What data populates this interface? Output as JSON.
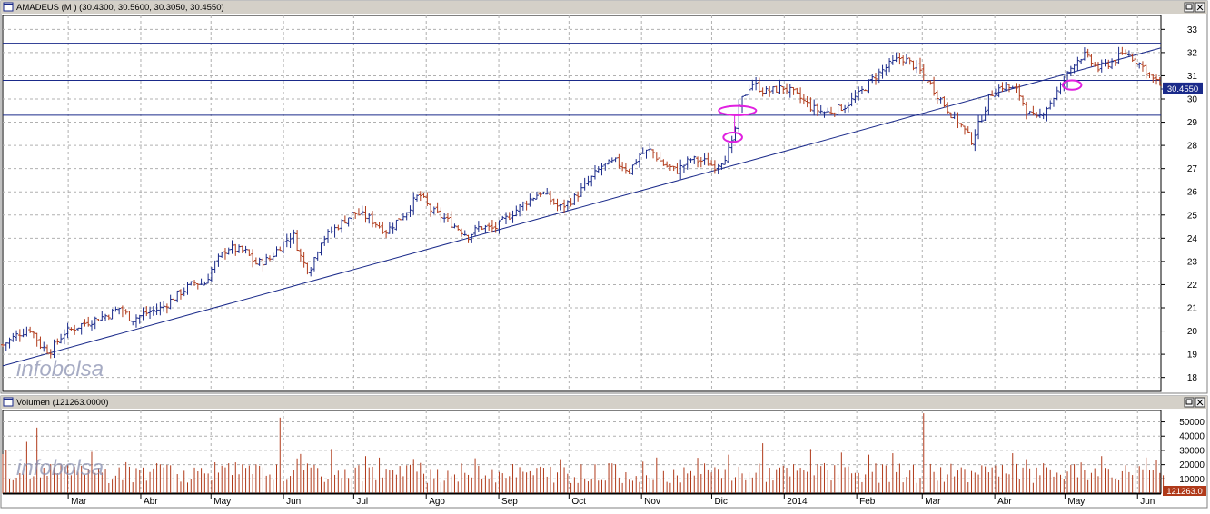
{
  "price_panel": {
    "title": "AMADEUS (M ) (30.4300, 30.5600, 30.3050, 30.4550)",
    "last_value_label": "30.4550",
    "watermark": "infobolsa"
  },
  "volume_panel": {
    "title": "Volumen (121263.0000)",
    "last_value_label": "121263.0",
    "watermark": "infobolsa"
  },
  "colors": {
    "up": "#1a2a8a",
    "down": "#b03a1a",
    "trendline": "#1a2a8a",
    "highlight": "#e020e0",
    "volume": "#b03a1a",
    "grid": "#b0b0b0",
    "frame": "#000000",
    "titlebar": "#d4d0c8",
    "last_value_bg": "#1a2a8a",
    "volume_last_bg": "#b03a1a"
  },
  "chart_data": [
    {
      "type": "ohlc",
      "title": "AMADEUS (M ) (30.4300, 30.5600, 30.3050, 30.4550)",
      "xlabel": "",
      "ylabel": "",
      "ylim": [
        17.4,
        33.6
      ],
      "y_ticks": [
        18,
        19,
        20,
        21,
        22,
        23,
        24,
        25,
        26,
        27,
        28,
        29,
        30,
        31,
        32,
        33
      ],
      "x_range_days": [
        0,
        495
      ],
      "months": [
        {
          "label": "Mar",
          "day": 28
        },
        {
          "label": "Abr",
          "day": 59
        },
        {
          "label": "May",
          "day": 89
        },
        {
          "label": "Jun",
          "day": 120
        },
        {
          "label": "Jul",
          "day": 150
        },
        {
          "label": "Ago",
          "day": 181
        },
        {
          "label": "Sep",
          "day": 212
        },
        {
          "label": "Oct",
          "day": 242
        },
        {
          "label": "Nov",
          "day": 273
        },
        {
          "label": "Dic",
          "day": 303
        },
        {
          "label": "2014",
          "day": 334
        },
        {
          "label": "Feb",
          "day": 365
        },
        {
          "label": "Mar",
          "day": 393
        },
        {
          "label": "Abr",
          "day": 424
        },
        {
          "label": "May",
          "day": 454
        },
        {
          "label": "Jun",
          "day": 485
        }
      ],
      "price_path": [
        [
          0,
          19.4
        ],
        [
          7,
          19.9
        ],
        [
          12,
          20.1
        ],
        [
          16,
          19.4
        ],
        [
          20,
          19.1
        ],
        [
          26,
          19.9
        ],
        [
          34,
          20.3
        ],
        [
          45,
          20.7
        ],
        [
          50,
          21.0
        ],
        [
          55,
          20.5
        ],
        [
          62,
          20.8
        ],
        [
          68,
          21.0
        ],
        [
          75,
          21.6
        ],
        [
          82,
          22.1
        ],
        [
          86,
          22.0
        ],
        [
          90,
          22.8
        ],
        [
          96,
          23.6
        ],
        [
          104,
          23.4
        ],
        [
          108,
          22.9
        ],
        [
          114,
          23.1
        ],
        [
          118,
          23.6
        ],
        [
          124,
          24.2
        ],
        [
          128,
          23.0
        ],
        [
          131,
          22.6
        ],
        [
          136,
          23.9
        ],
        [
          144,
          24.6
        ],
        [
          150,
          25.1
        ],
        [
          156,
          24.9
        ],
        [
          164,
          24.3
        ],
        [
          172,
          25.1
        ],
        [
          178,
          25.9
        ],
        [
          183,
          25.2
        ],
        [
          188,
          24.9
        ],
        [
          195,
          24.4
        ],
        [
          199,
          24.1
        ],
        [
          204,
          24.5
        ],
        [
          210,
          24.4
        ],
        [
          218,
          25.1
        ],
        [
          224,
          25.6
        ],
        [
          230,
          26.0
        ],
        [
          238,
          25.3
        ],
        [
          244,
          25.7
        ],
        [
          250,
          26.4
        ],
        [
          256,
          27.1
        ],
        [
          262,
          27.3
        ],
        [
          268,
          26.9
        ],
        [
          272,
          27.6
        ],
        [
          277,
          27.8
        ],
        [
          282,
          27.2
        ],
        [
          288,
          26.9
        ],
        [
          294,
          27.4
        ],
        [
          300,
          27.3
        ],
        [
          304,
          27.1
        ],
        [
          308,
          27.4
        ],
        [
          312,
          28.1
        ],
        [
          315,
          29.8
        ],
        [
          320,
          30.7
        ],
        [
          326,
          30.3
        ],
        [
          334,
          30.5
        ],
        [
          340,
          30.1
        ],
        [
          346,
          29.6
        ],
        [
          352,
          29.4
        ],
        [
          360,
          29.7
        ],
        [
          366,
          30.2
        ],
        [
          372,
          30.9
        ],
        [
          378,
          31.4
        ],
        [
          384,
          31.8
        ],
        [
          390,
          31.4
        ],
        [
          394,
          31.0
        ],
        [
          400,
          30.1
        ],
        [
          405,
          29.4
        ],
        [
          410,
          28.8
        ],
        [
          414,
          28.2
        ],
        [
          418,
          29.1
        ],
        [
          422,
          30.2
        ],
        [
          428,
          30.6
        ],
        [
          434,
          30.3
        ],
        [
          438,
          29.4
        ],
        [
          442,
          29.1
        ],
        [
          448,
          29.9
        ],
        [
          452,
          30.5
        ],
        [
          458,
          31.6
        ],
        [
          462,
          31.9
        ],
        [
          468,
          31.3
        ],
        [
          474,
          31.6
        ],
        [
          480,
          32.0
        ],
        [
          484,
          31.7
        ],
        [
          488,
          31.3
        ],
        [
          492,
          30.8
        ],
        [
          496,
          30.5
        ]
      ],
      "ohlc_count": 340,
      "last": {
        "open": 30.43,
        "high": 30.56,
        "low": 30.305,
        "close": 30.455
      },
      "horizontal_lines": [
        32.4,
        30.8,
        29.3,
        28.1
      ],
      "trendline": {
        "from": [
          0,
          18.5
        ],
        "to": [
          495,
          32.2
        ]
      },
      "highlights": [
        {
          "day": 312,
          "price": 28.35,
          "rx": 4,
          "ry": 0.2
        },
        {
          "day": 314,
          "price": 29.5,
          "rx": 8,
          "ry": 0.2
        },
        {
          "day": 457,
          "price": 30.6,
          "rx": 4,
          "ry": 0.2
        }
      ]
    },
    {
      "type": "bar",
      "title": "Volumen (121263.0000)",
      "xlabel": "",
      "ylabel": "",
      "ylim": [
        0,
        58000
      ],
      "y_ticks": [
        10000,
        20000,
        30000,
        40000,
        50000
      ],
      "y_tick_labels": [
        "10000",
        "20000",
        "30000",
        "40000",
        "50000"
      ],
      "base_range": [
        7000,
        21000
      ],
      "spikes": [
        {
          "day": 2,
          "value": 30000
        },
        {
          "day": 10,
          "value": 36000
        },
        {
          "day": 15,
          "value": 46000
        },
        {
          "day": 38,
          "value": 29000
        },
        {
          "day": 118,
          "value": 53000
        },
        {
          "day": 140,
          "value": 31000
        },
        {
          "day": 155,
          "value": 26000
        },
        {
          "day": 175,
          "value": 24000
        },
        {
          "day": 280,
          "value": 25000
        },
        {
          "day": 310,
          "value": 27000
        },
        {
          "day": 325,
          "value": 35000
        },
        {
          "day": 345,
          "value": 31000
        },
        {
          "day": 370,
          "value": 27000
        },
        {
          "day": 381,
          "value": 28000
        },
        {
          "day": 394,
          "value": 56000
        },
        {
          "day": 432,
          "value": 28000
        },
        {
          "day": 469,
          "value": 26000
        },
        {
          "day": 489,
          "value": 25000
        }
      ],
      "last": 121263
    }
  ]
}
